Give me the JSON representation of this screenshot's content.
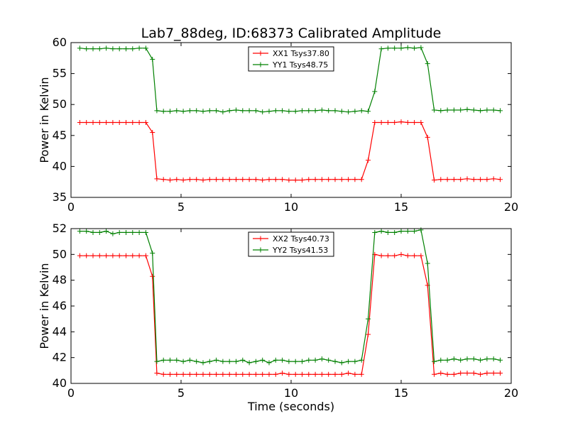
{
  "figure": {
    "title": "Lab7_88deg, ID:68373 Calibrated Amplitude",
    "xlabel": "Time (seconds)"
  },
  "chart_data": [
    {
      "type": "line",
      "title": "Lab7_88deg, ID:68373 Calibrated Amplitude",
      "xlabel": "",
      "ylabel": "Power in Kelvin",
      "xlim": [
        0,
        20
      ],
      "ylim": [
        35,
        60
      ],
      "xticks": [
        0,
        5,
        10,
        15,
        20
      ],
      "yticks": [
        35,
        40,
        45,
        50,
        55,
        60
      ],
      "grid": false,
      "legend_position": "top-center",
      "x": [
        0.4,
        0.7,
        1.0,
        1.3,
        1.6,
        1.9,
        2.2,
        2.5,
        2.8,
        3.1,
        3.4,
        3.7,
        3.9,
        4.2,
        4.5,
        4.8,
        5.1,
        5.4,
        5.7,
        6.0,
        6.3,
        6.6,
        6.9,
        7.2,
        7.5,
        7.8,
        8.1,
        8.4,
        8.7,
        9.0,
        9.3,
        9.6,
        9.9,
        10.2,
        10.5,
        10.8,
        11.1,
        11.4,
        11.7,
        12.0,
        12.3,
        12.6,
        12.9,
        13.2,
        13.5,
        13.8,
        14.1,
        14.4,
        14.7,
        15.0,
        15.3,
        15.6,
        15.9,
        16.2,
        16.5,
        16.8,
        17.1,
        17.4,
        17.7,
        18.0,
        18.3,
        18.6,
        18.9,
        19.2,
        19.5
      ],
      "series": [
        {
          "name": "XX1 Tsys37.80",
          "color": "#ff0000",
          "values": [
            47.1,
            47.1,
            47.1,
            47.1,
            47.1,
            47.1,
            47.1,
            47.1,
            47.1,
            47.1,
            47.1,
            45.5,
            38.0,
            37.9,
            37.8,
            37.9,
            37.8,
            37.9,
            37.9,
            37.8,
            37.9,
            37.9,
            37.9,
            37.9,
            37.9,
            37.9,
            37.9,
            37.9,
            37.8,
            37.9,
            37.9,
            37.9,
            37.8,
            37.8,
            37.8,
            37.9,
            37.9,
            37.9,
            37.9,
            37.9,
            37.9,
            37.9,
            37.9,
            37.9,
            41.0,
            47.1,
            47.1,
            47.1,
            47.1,
            47.2,
            47.1,
            47.1,
            47.1,
            44.7,
            37.8,
            37.9,
            37.9,
            37.9,
            37.9,
            38.0,
            37.9,
            37.9,
            37.9,
            38.0,
            37.9
          ]
        },
        {
          "name": "YY1 Tsys48.75",
          "color": "#008000",
          "values": [
            59.1,
            59.0,
            59.0,
            59.0,
            59.1,
            59.0,
            59.0,
            59.0,
            59.0,
            59.1,
            59.1,
            57.3,
            49.0,
            48.9,
            48.9,
            49.0,
            48.9,
            49.0,
            49.0,
            48.9,
            49.0,
            49.0,
            48.8,
            49.0,
            49.1,
            49.0,
            49.0,
            49.0,
            48.8,
            48.9,
            49.0,
            49.0,
            48.9,
            48.9,
            49.0,
            49.0,
            49.0,
            49.1,
            49.0,
            49.0,
            48.9,
            48.8,
            48.9,
            49.0,
            48.9,
            52.1,
            59.0,
            59.1,
            59.1,
            59.1,
            59.2,
            59.1,
            59.2,
            56.6,
            49.1,
            49.0,
            49.1,
            49.1,
            49.1,
            49.2,
            49.1,
            49.0,
            49.1,
            49.1,
            49.0
          ]
        }
      ]
    },
    {
      "type": "line",
      "title": "",
      "xlabel": "Time (seconds)",
      "ylabel": "Power in Kelvin",
      "xlim": [
        0,
        20
      ],
      "ylim": [
        40,
        52
      ],
      "xticks": [
        0,
        5,
        10,
        15,
        20
      ],
      "yticks": [
        40,
        42,
        44,
        46,
        48,
        50,
        52
      ],
      "grid": false,
      "legend_position": "top-center",
      "x": [
        0.4,
        0.7,
        1.0,
        1.3,
        1.6,
        1.9,
        2.2,
        2.5,
        2.8,
        3.1,
        3.4,
        3.7,
        3.9,
        4.2,
        4.5,
        4.8,
        5.1,
        5.4,
        5.7,
        6.0,
        6.3,
        6.6,
        6.9,
        7.2,
        7.5,
        7.8,
        8.1,
        8.4,
        8.7,
        9.0,
        9.3,
        9.6,
        9.9,
        10.2,
        10.5,
        10.8,
        11.1,
        11.4,
        11.7,
        12.0,
        12.3,
        12.6,
        12.9,
        13.2,
        13.5,
        13.8,
        14.1,
        14.4,
        14.7,
        15.0,
        15.3,
        15.6,
        15.9,
        16.2,
        16.5,
        16.8,
        17.1,
        17.4,
        17.7,
        18.0,
        18.3,
        18.6,
        18.9,
        19.2,
        19.5
      ],
      "series": [
        {
          "name": "XX2 Tsys40.73",
          "color": "#ff0000",
          "values": [
            49.9,
            49.9,
            49.9,
            49.9,
            49.9,
            49.9,
            49.9,
            49.9,
            49.9,
            49.9,
            49.9,
            48.3,
            40.8,
            40.7,
            40.7,
            40.7,
            40.7,
            40.7,
            40.7,
            40.7,
            40.7,
            40.7,
            40.7,
            40.7,
            40.7,
            40.7,
            40.7,
            40.7,
            40.7,
            40.7,
            40.7,
            40.8,
            40.7,
            40.7,
            40.7,
            40.7,
            40.7,
            40.7,
            40.7,
            40.7,
            40.7,
            40.8,
            40.7,
            40.7,
            43.8,
            50.0,
            49.9,
            49.9,
            49.9,
            50.0,
            49.9,
            49.9,
            49.9,
            47.6,
            40.7,
            40.8,
            40.7,
            40.7,
            40.8,
            40.8,
            40.8,
            40.7,
            40.8,
            40.8,
            40.8
          ]
        },
        {
          "name": "YY2 Tsys41.53",
          "color": "#008000",
          "values": [
            51.8,
            51.8,
            51.7,
            51.7,
            51.8,
            51.6,
            51.7,
            51.7,
            51.7,
            51.7,
            51.7,
            50.1,
            41.7,
            41.8,
            41.8,
            41.8,
            41.7,
            41.8,
            41.7,
            41.6,
            41.7,
            41.8,
            41.7,
            41.7,
            41.7,
            41.8,
            41.6,
            41.7,
            41.8,
            41.6,
            41.8,
            41.8,
            41.7,
            41.7,
            41.7,
            41.8,
            41.8,
            41.9,
            41.8,
            41.7,
            41.6,
            41.7,
            41.7,
            41.8,
            45.0,
            51.7,
            51.8,
            51.7,
            51.7,
            51.8,
            51.8,
            51.8,
            51.9,
            49.3,
            41.7,
            41.8,
            41.8,
            41.9,
            41.8,
            41.9,
            41.9,
            41.8,
            41.9,
            41.9,
            41.8
          ]
        }
      ]
    }
  ]
}
